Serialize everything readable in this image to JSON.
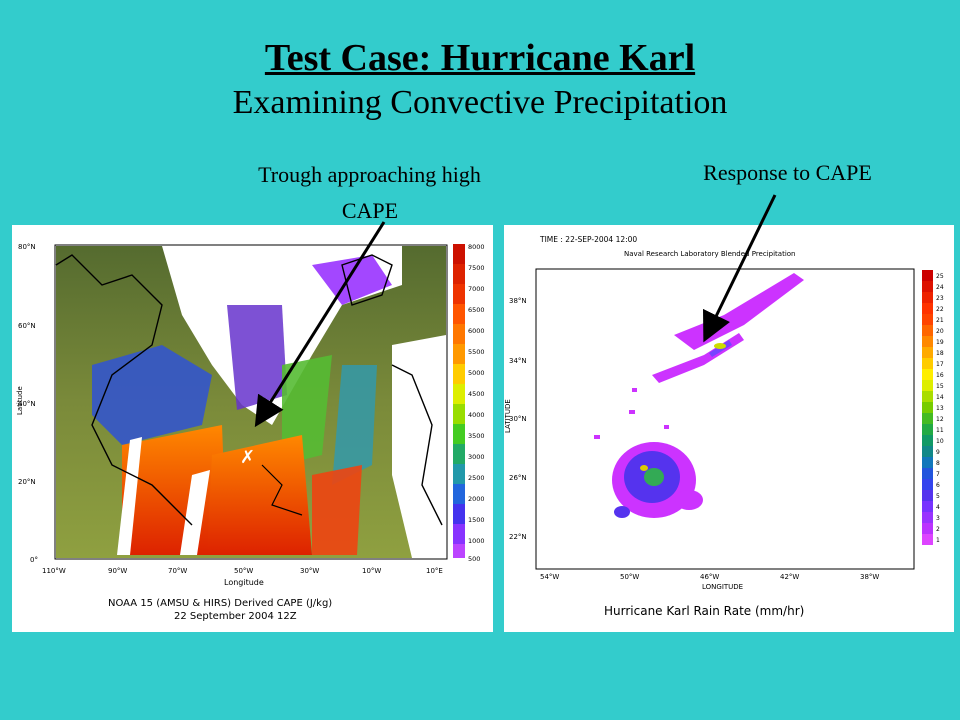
{
  "slide": {
    "title": "Test Case:  Hurricane Karl",
    "subtitle": "Examining Convective Precipitation",
    "callout_left_line1": "Trough approaching high",
    "callout_left_line2": "CAPE",
    "callout_right": "Response to CAPE"
  },
  "left_map": {
    "y_label": "Latitude",
    "x_label": "Longitude",
    "lat_ticks": [
      "80°N",
      "60°N",
      "40°N",
      "20°N",
      "0°"
    ],
    "lon_ticks": [
      "110°W",
      "90°W",
      "70°W",
      "50°W",
      "30°W",
      "10°W",
      "10°E"
    ],
    "caption_line1": "NOAA 15 (AMSU & HIRS) Derived CAPE (J/kg)",
    "caption_line2": "22 September 2004 12Z",
    "colorbar_labels": [
      "8000",
      "7500",
      "7000",
      "6500",
      "6000",
      "5500",
      "5000",
      "4500",
      "4000",
      "3500",
      "3000",
      "2500",
      "2000",
      "1500",
      "1000",
      "500"
    ]
  },
  "right_map": {
    "time_label": "TIME : 22-SEP-2004 12:00",
    "source_label": "Naval Research Laboratory Blended Precipitation",
    "y_label": "LATITUDE",
    "x_label": "LONGITUDE",
    "lat_ticks": [
      "38°N",
      "34°N",
      "30°N",
      "26°N",
      "22°N"
    ],
    "lon_ticks": [
      "54°W",
      "50°W",
      "46°W",
      "42°W",
      "38°W"
    ],
    "caption": "Hurricane Karl Rain Rate (mm/hr)",
    "colorbar_labels": [
      "25",
      "24",
      "23",
      "22",
      "21",
      "20",
      "19",
      "18",
      "17",
      "16",
      "15",
      "14",
      "13",
      "12",
      "11",
      "10",
      "9",
      "8",
      "7",
      "6",
      "5",
      "4",
      "3",
      "2",
      "1"
    ]
  },
  "colors": {
    "background": "#33CCCC",
    "arrow": "#000000"
  }
}
